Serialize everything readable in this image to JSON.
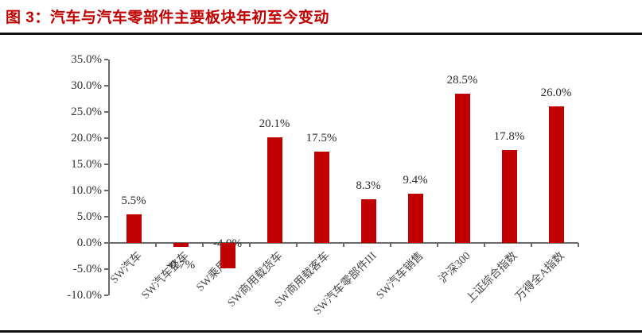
{
  "figure": {
    "title": "图 3：汽车与汽车零部件主要板块年初至今变动",
    "accent_color": "#c00000",
    "rule_color": "#111111"
  },
  "chart_data": {
    "type": "bar",
    "title": "汽车与汽车零部件主要板块年初至今变动",
    "categories": [
      "SW汽车",
      "SW汽车整车",
      "SW乘用车",
      "SW商用载货车",
      "SW商用载客车",
      "SW汽车零部件III",
      "SW汽车销售",
      "沪深300",
      "上证综合指数",
      "万得全A指数"
    ],
    "values": [
      5.5,
      -0.7,
      -4.9,
      20.1,
      17.5,
      8.3,
      9.4,
      28.5,
      17.8,
      26.0
    ],
    "data_labels": [
      "5.5%",
      "-0.7%",
      "-4.9%",
      "20.1%",
      "17.5%",
      "8.3%",
      "9.4%",
      "28.5%",
      "17.8%",
      "26.0%"
    ],
    "label_positions": [
      "above",
      "below",
      "axis-behind",
      "above",
      "above",
      "above",
      "above",
      "above",
      "above",
      "above"
    ],
    "y_tick_labels": [
      "35.0%",
      "30.0%",
      "25.0%",
      "20.0%",
      "15.0%",
      "10.0%",
      "5.0%",
      "0.0%",
      "-5.0%",
      "-10.0%"
    ],
    "y_tick_values": [
      35,
      30,
      25,
      20,
      15,
      10,
      5,
      0,
      -5,
      -10
    ],
    "ylim": [
      -10,
      35
    ],
    "xlabel": "",
    "ylabel": "",
    "grid": false,
    "legend": false,
    "bar_color": "#c00000",
    "axis_color": "#6b6b6b",
    "label_rotation_deg": 45
  }
}
